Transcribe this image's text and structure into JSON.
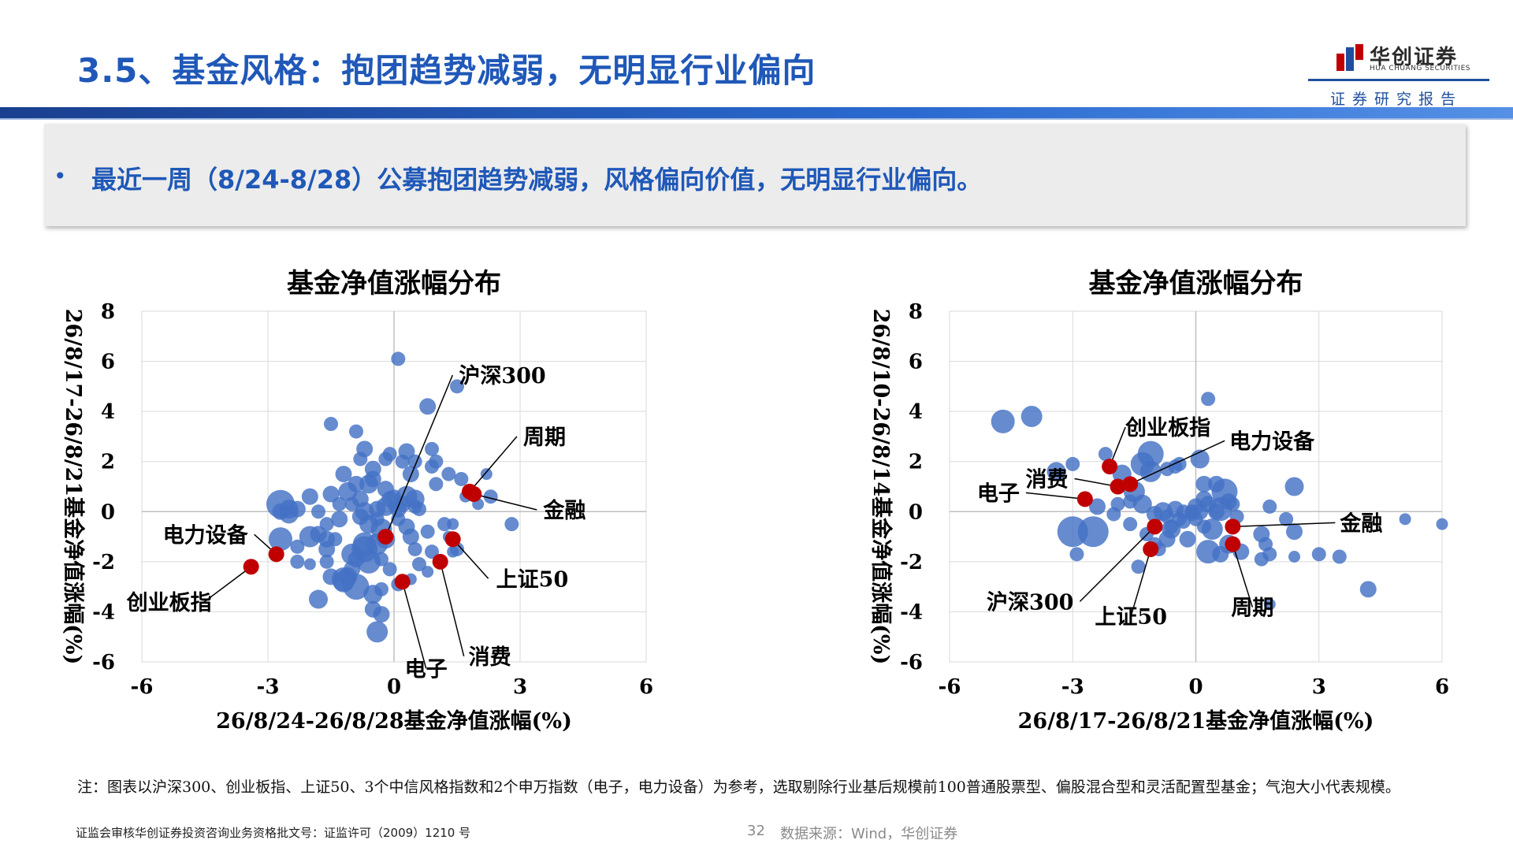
{
  "page": {
    "title": "3.5、基金风格：抱团趋势减弱，无明显行业偏向",
    "bullet": "最近一周（8/24-8/28）公募抱团趋势减弱，风格偏向价值，无明显行业偏向。",
    "note": "注：图表以沪深300、创业板指、上证50、3个中信风格指数和2个申万指数（电子，电力设备）为参考，选取剔除行业基后规模前100普通股票型、偏股混合型和灵活配置型基金；气泡大小代表规模。",
    "footer_left": "证监会审核华创证券投资咨询业务资格批文号：证监许可（2009）1210 号",
    "page_number": "32",
    "source": "数据来源：Wind，华创证券"
  },
  "logo": {
    "name_cn": "华创证券",
    "name_en": "HUA CHUANG SECURITIES",
    "tagline": "证券研究报告"
  },
  "colors": {
    "title_blue": "#1f58b8",
    "bubble": "#4472c4",
    "highlight": "#c00000"
  },
  "chart_data": [
    {
      "type": "scatter",
      "title": "基金净值涨幅分布",
      "xlabel": "26/8/24-26/8/28基金净值涨幅(%)",
      "ylabel": "26/8/17-26/8/21基金净值涨幅(%)",
      "xlim": [
        -6,
        6
      ],
      "ylim": [
        -6,
        8
      ],
      "xticks": [
        "-6",
        "-3",
        "0",
        "3",
        "6"
      ],
      "yticks": [
        "-6",
        "-4",
        "-2",
        "0",
        "2",
        "4",
        "6",
        "8"
      ],
      "grid": true,
      "bubble_note": "bubble size = fund size",
      "bubbles": [
        [
          -2.7,
          0.3,
          1.2
        ],
        [
          -2.5,
          0.1,
          0.8
        ],
        [
          -2.7,
          0.0,
          0.7
        ],
        [
          -2.5,
          -0.1,
          0.8
        ],
        [
          -1.8,
          0.0,
          0.6
        ],
        [
          -2.7,
          -1.1,
          1.0
        ],
        [
          -2.3,
          0.1,
          0.7
        ],
        [
          -2.3,
          -1.4,
          0.6
        ],
        [
          -2.0,
          0.6,
          0.7
        ],
        [
          -2.0,
          -1.0,
          0.9
        ],
        [
          -1.8,
          -0.9,
          0.7
        ],
        [
          -1.6,
          -1.1,
          0.7
        ],
        [
          -1.6,
          -2.0,
          0.6
        ],
        [
          -1.6,
          -0.5,
          0.6
        ],
        [
          -1.4,
          -1.1,
          0.6
        ],
        [
          -1.3,
          -0.3,
          0.7
        ],
        [
          -1.5,
          0.7,
          0.7
        ],
        [
          -1.3,
          0.3,
          0.6
        ],
        [
          -1.1,
          0.8,
          0.8
        ],
        [
          -1.0,
          0.3,
          0.6
        ],
        [
          -0.9,
          1.1,
          0.7
        ],
        [
          -0.8,
          0.5,
          0.7
        ],
        [
          -0.7,
          0.0,
          0.8
        ],
        [
          -0.6,
          -0.5,
          0.8
        ],
        [
          -0.7,
          -1.3,
          1.0
        ],
        [
          -0.9,
          -1.9,
          0.7
        ],
        [
          -0.6,
          -2.0,
          1.0
        ],
        [
          -1.0,
          -2.3,
          0.7
        ],
        [
          -1.1,
          -2.6,
          0.8
        ],
        [
          -1.2,
          -2.7,
          1.0
        ],
        [
          -1.2,
          -2.8,
          0.9
        ],
        [
          -1.5,
          -2.6,
          0.7
        ],
        [
          -0.9,
          -3.0,
          1.1
        ],
        [
          -0.5,
          -3.3,
          0.8
        ],
        [
          -0.3,
          -3.1,
          0.6
        ],
        [
          -0.5,
          -3.9,
          0.7
        ],
        [
          -0.4,
          -4.8,
          0.9
        ],
        [
          -0.3,
          -4.1,
          0.7
        ],
        [
          -1.8,
          -3.5,
          0.8
        ],
        [
          -2.3,
          -2.0,
          0.6
        ],
        [
          -2.0,
          -2.1,
          0.5
        ],
        [
          -1.6,
          -1.5,
          0.7
        ],
        [
          -1.0,
          -1.7,
          0.9
        ],
        [
          -0.7,
          -1.5,
          1.1
        ],
        [
          -0.4,
          -1.3,
          0.9
        ],
        [
          -0.2,
          -1.1,
          0.8
        ],
        [
          -0.3,
          -0.7,
          0.9
        ],
        [
          -0.4,
          -0.3,
          0.6
        ],
        [
          -0.4,
          0.1,
          0.7
        ],
        [
          -0.2,
          0.2,
          0.8
        ],
        [
          -0.1,
          0.5,
          0.7
        ],
        [
          0.0,
          0.6,
          0.6
        ],
        [
          0.1,
          0.1,
          0.7
        ],
        [
          0.2,
          0.3,
          0.7
        ],
        [
          0.3,
          0.6,
          0.9
        ],
        [
          0.5,
          0.2,
          0.6
        ],
        [
          0.6,
          0.1,
          0.6
        ],
        [
          0.5,
          0.5,
          0.8
        ],
        [
          0.4,
          1.5,
          0.7
        ],
        [
          0.3,
          2.4,
          0.7
        ],
        [
          0.5,
          2.0,
          0.6
        ],
        [
          -0.2,
          2.1,
          0.6
        ],
        [
          -0.5,
          1.7,
          0.7
        ],
        [
          -0.5,
          1.3,
          0.7
        ],
        [
          -0.7,
          2.5,
          0.7
        ],
        [
          -0.9,
          3.2,
          0.6
        ],
        [
          -1.5,
          3.5,
          0.6
        ],
        [
          -1.2,
          1.5,
          0.7
        ],
        [
          -0.8,
          2.1,
          0.6
        ],
        [
          -0.6,
          1.1,
          0.8
        ],
        [
          0.0,
          0.2,
          0.5
        ],
        [
          0.1,
          -0.3,
          0.6
        ],
        [
          0.3,
          -0.6,
          0.7
        ],
        [
          0.4,
          -1.0,
          0.7
        ],
        [
          0.5,
          -1.5,
          0.6
        ],
        [
          0.6,
          -2.1,
          0.6
        ],
        [
          0.4,
          -2.7,
          0.5
        ],
        [
          0.8,
          -0.8,
          0.6
        ],
        [
          0.9,
          -1.6,
          0.6
        ],
        [
          0.8,
          -2.4,
          0.5
        ],
        [
          1.2,
          -0.5,
          0.6
        ],
        [
          1.3,
          -1.0,
          0.5
        ],
        [
          1.4,
          -1.6,
          0.5
        ],
        [
          1.5,
          -1.5,
          0.6
        ],
        [
          1.0,
          1.1,
          0.6
        ],
        [
          0.9,
          1.8,
          0.6
        ],
        [
          1.0,
          2.0,
          0.6
        ],
        [
          0.9,
          2.5,
          0.6
        ],
        [
          0.8,
          4.2,
          0.7
        ],
        [
          0.1,
          6.1,
          0.6
        ],
        [
          1.5,
          5.0,
          0.6
        ],
        [
          1.3,
          1.5,
          0.6
        ],
        [
          1.6,
          1.3,
          0.6
        ],
        [
          2.2,
          1.5,
          0.5
        ],
        [
          1.7,
          0.6,
          0.5
        ],
        [
          2.3,
          0.6,
          0.6
        ],
        [
          2.8,
          -0.5,
          0.6
        ],
        [
          2.0,
          0.3,
          0.5
        ],
        [
          1.4,
          -0.5,
          0.5
        ],
        [
          0.2,
          2.0,
          0.6
        ],
        [
          -0.1,
          2.3,
          0.6
        ],
        [
          -0.2,
          0.9,
          0.7
        ],
        [
          -0.3,
          -1.9,
          0.6
        ],
        [
          -0.1,
          -2.3,
          0.6
        ],
        [
          0.1,
          -2.9,
          0.6
        ],
        [
          -0.8,
          -0.2,
          0.7
        ]
      ],
      "highlights": [
        {
          "name": "沪深300",
          "x": -0.2,
          "y": -1.0
        },
        {
          "name": "周期",
          "x": 1.8,
          "y": 0.8
        },
        {
          "name": "金融",
          "x": 1.9,
          "y": 0.7
        },
        {
          "name": "电力设备",
          "x": -2.8,
          "y": -1.7
        },
        {
          "name": "创业板指",
          "x": -3.4,
          "y": -2.2
        },
        {
          "name": "上证50",
          "x": 1.4,
          "y": -1.1
        },
        {
          "name": "消费",
          "x": 1.1,
          "y": -2.0
        },
        {
          "name": "电子",
          "x": 0.2,
          "y": -2.8
        }
      ]
    },
    {
      "type": "scatter",
      "title": "基金净值涨幅分布",
      "xlabel": "26/8/17-26/8/21基金净值涨幅(%)",
      "ylabel": "26/8/10-26/8/14基金净值涨幅(%)",
      "xlim": [
        -6,
        6
      ],
      "ylim": [
        -6,
        8
      ],
      "xticks": [
        "-6",
        "-3",
        "0",
        "3",
        "6"
      ],
      "yticks": [
        "-6",
        "-4",
        "-2",
        "0",
        "2",
        "4",
        "6",
        "8"
      ],
      "grid": true,
      "bubble_note": "bubble size = fund size",
      "bubbles": [
        [
          -4.7,
          3.6,
          1.0
        ],
        [
          -4.0,
          3.8,
          0.9
        ],
        [
          -3.4,
          1.6,
          0.8
        ],
        [
          -3.0,
          1.9,
          0.6
        ],
        [
          -3.0,
          -0.8,
          1.3
        ],
        [
          -2.9,
          -1.7,
          0.6
        ],
        [
          -2.5,
          -0.8,
          1.3
        ],
        [
          -2.4,
          0.2,
          0.7
        ],
        [
          -2.2,
          2.3,
          0.6
        ],
        [
          -1.9,
          0.3,
          0.6
        ],
        [
          -1.8,
          1.5,
          0.8
        ],
        [
          -1.6,
          -0.5,
          0.6
        ],
        [
          -1.5,
          0.8,
          0.9
        ],
        [
          -1.3,
          0.3,
          0.8
        ],
        [
          -1.3,
          1.9,
          1.0
        ],
        [
          -1.1,
          2.3,
          1.1
        ],
        [
          -1.1,
          1.6,
          0.9
        ],
        [
          -1.0,
          -0.1,
          0.7
        ],
        [
          -0.8,
          0.0,
          0.8
        ],
        [
          -0.7,
          -0.2,
          0.6
        ],
        [
          -0.6,
          -0.7,
          0.8
        ],
        [
          -0.5,
          0.1,
          0.7
        ],
        [
          -0.4,
          1.9,
          0.6
        ],
        [
          -0.3,
          0.0,
          0.6
        ],
        [
          -0.2,
          -1.1,
          0.7
        ],
        [
          -0.1,
          0.0,
          0.6
        ],
        [
          0.0,
          0.2,
          0.7
        ],
        [
          0.1,
          0.0,
          0.7
        ],
        [
          0.1,
          2.1,
          0.8
        ],
        [
          0.2,
          0.5,
          0.7
        ],
        [
          0.3,
          0.3,
          0.7
        ],
        [
          0.3,
          -1.6,
          1.0
        ],
        [
          0.4,
          -0.7,
          0.9
        ],
        [
          0.5,
          0.0,
          0.7
        ],
        [
          0.5,
          1.1,
          0.7
        ],
        [
          0.6,
          0.1,
          1.0
        ],
        [
          0.6,
          -1.7,
          0.7
        ],
        [
          0.7,
          0.8,
          1.1
        ],
        [
          0.8,
          -1.3,
          0.8
        ],
        [
          0.8,
          0.4,
          0.7
        ],
        [
          0.9,
          0.3,
          0.6
        ],
        [
          0.3,
          4.5,
          0.6
        ],
        [
          -0.4,
          -0.3,
          0.6
        ],
        [
          -0.6,
          -0.6,
          0.6
        ],
        [
          -0.7,
          -1.1,
          0.7
        ],
        [
          -1.0,
          -1.3,
          0.6
        ],
        [
          -0.9,
          -1.5,
          0.6
        ],
        [
          -1.4,
          -2.2,
          0.6
        ],
        [
          -0.7,
          1.7,
          0.6
        ],
        [
          -0.5,
          1.8,
          0.6
        ],
        [
          0.2,
          1.1,
          0.7
        ],
        [
          -0.1,
          -0.1,
          0.6
        ],
        [
          1.0,
          -0.2,
          0.6
        ],
        [
          1.1,
          -1.6,
          0.7
        ],
        [
          1.6,
          -0.9,
          0.7
        ],
        [
          1.7,
          -1.3,
          0.6
        ],
        [
          1.6,
          -1.9,
          0.6
        ],
        [
          1.8,
          -1.7,
          0.6
        ],
        [
          1.8,
          -3.7,
          0.5
        ],
        [
          2.4,
          -0.8,
          0.7
        ],
        [
          2.4,
          -1.8,
          0.5
        ],
        [
          2.2,
          -0.3,
          0.6
        ],
        [
          1.8,
          0.2,
          0.6
        ],
        [
          2.4,
          1.0,
          0.8
        ],
        [
          3.0,
          -1.7,
          0.6
        ],
        [
          3.5,
          -1.8,
          0.6
        ],
        [
          4.2,
          -3.1,
          0.7
        ],
        [
          5.1,
          -0.3,
          0.5
        ],
        [
          6.0,
          -0.5,
          0.5
        ],
        [
          -1.6,
          0.4,
          0.6
        ],
        [
          -2.0,
          -0.1,
          0.6
        ],
        [
          -0.3,
          -0.4,
          0.6
        ],
        [
          0.0,
          -0.3,
          0.6
        ],
        [
          0.2,
          -0.6,
          0.6
        ],
        [
          -1.2,
          -0.9,
          0.6
        ],
        [
          0.9,
          -0.6,
          0.6
        ]
      ],
      "highlights": [
        {
          "name": "创业板指",
          "x": -2.1,
          "y": 1.8
        },
        {
          "name": "电力设备",
          "x": -1.6,
          "y": 1.1
        },
        {
          "name": "消费",
          "x": -1.9,
          "y": 1.0
        },
        {
          "name": "电子",
          "x": -2.7,
          "y": 0.5
        },
        {
          "name": "金融",
          "x": 0.9,
          "y": -0.6
        },
        {
          "name": "沪深300",
          "x": -1.0,
          "y": -0.6
        },
        {
          "name": "上证50",
          "x": -1.1,
          "y": -1.5
        },
        {
          "name": "周期",
          "x": 0.9,
          "y": -1.3
        }
      ]
    }
  ]
}
